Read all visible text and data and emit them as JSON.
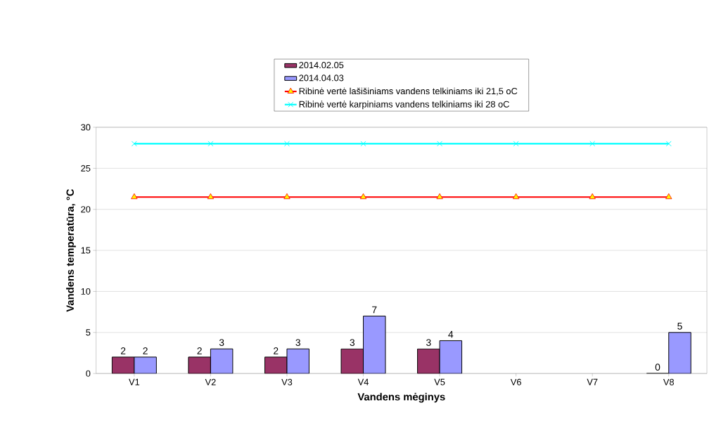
{
  "chart_data": {
    "type": "bar",
    "xlabel": "Vandens mėginys",
    "ylabel": "Vandens temperatūra, °C",
    "categories": [
      "V1",
      "V2",
      "V3",
      "V4",
      "V5",
      "V6",
      "V7",
      "V8"
    ],
    "series": [
      {
        "name": "2014.02.05",
        "color": "#993366",
        "values": [
          2,
          2,
          2,
          3,
          3,
          null,
          null,
          0
        ],
        "value_labels": [
          "2",
          "2",
          "2",
          "3",
          "3",
          null,
          null,
          "0"
        ]
      },
      {
        "name": "2014.04.03",
        "color": "#9999ff",
        "values": [
          2,
          3,
          3,
          7,
          4,
          null,
          null,
          5
        ],
        "value_labels": [
          "2",
          "3",
          "3",
          "7",
          "4",
          null,
          null,
          "5"
        ]
      },
      {
        "name": "Ribinė vertė lašišiniams vandens telkiniams iki 21,5 oC",
        "type": "line",
        "color": "#ff0000",
        "marker": "triangle",
        "values": [
          21.5,
          21.5,
          21.5,
          21.5,
          21.5,
          21.5,
          21.5,
          21.5
        ]
      },
      {
        "name": "Ribinė vertė karpiniams vandens telkiniams iki 28 oC",
        "type": "line",
        "color": "#00ffff",
        "marker": "cross",
        "values": [
          28,
          28,
          28,
          28,
          28,
          28,
          28,
          28
        ]
      }
    ],
    "ylim": [
      0,
      30
    ],
    "yticks": [
      0,
      5,
      10,
      15,
      20,
      25,
      30
    ],
    "grid": "y",
    "legend": "top"
  }
}
